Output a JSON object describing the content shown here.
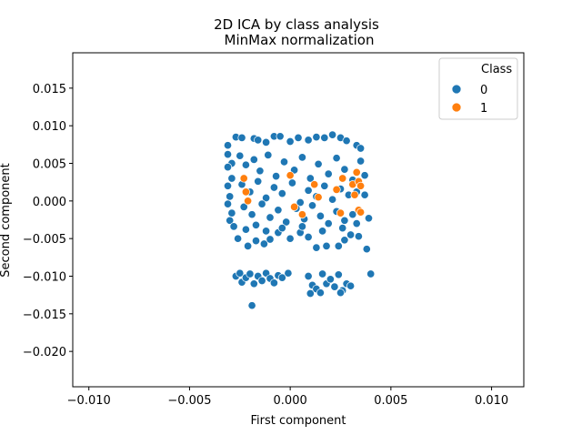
{
  "chart_data": {
    "type": "scatter",
    "title": "2D ICA by class analysis",
    "subtitle": "MinMax normalization",
    "xlabel": "First component",
    "ylabel": "Second component",
    "xlim": [
      -0.0108,
      0.0116
    ],
    "ylim": [
      -0.0247,
      0.0197
    ],
    "xticks": [
      -0.01,
      -0.005,
      0.0,
      0.005,
      0.01
    ],
    "xtick_labels": [
      "−0.010",
      "−0.005",
      "0.000",
      "0.005",
      "0.010"
    ],
    "yticks": [
      0.015,
      0.01,
      0.005,
      0.0,
      -0.005,
      -0.01,
      -0.015,
      -0.02
    ],
    "ytick_labels": [
      "0.015",
      "0.010",
      "0.005",
      "0.000",
      "−0.005",
      "−0.010",
      "−0.015",
      "−0.020"
    ],
    "grid": false,
    "legend": {
      "title": "Class",
      "placement": "top-right",
      "entries": [
        "0",
        "1"
      ]
    },
    "colors": {
      "0": "#1f77b4",
      "1": "#ff7f0e"
    },
    "series": [
      {
        "name": "0",
        "points": [
          [
            -0.0031,
            0.0074
          ],
          [
            -0.0027,
            0.0085
          ],
          [
            -0.0024,
            0.0084
          ],
          [
            -0.0018,
            0.0083
          ],
          [
            -0.0016,
            0.0081
          ],
          [
            -0.0012,
            0.0078
          ],
          [
            -0.0008,
            0.0086
          ],
          [
            -0.0005,
            0.0086
          ],
          [
            0.0,
            0.0079
          ],
          [
            0.0004,
            0.0084
          ],
          [
            0.0009,
            0.0081
          ],
          [
            0.0013,
            0.0085
          ],
          [
            0.0017,
            0.0084
          ],
          [
            0.0021,
            0.0088
          ],
          [
            0.0025,
            0.0084
          ],
          [
            0.0028,
            0.008
          ],
          [
            0.0033,
            0.0074
          ],
          [
            0.0035,
            0.007
          ],
          [
            -0.0031,
            0.0062
          ],
          [
            -0.0029,
            0.005
          ],
          [
            -0.0031,
            0.0045
          ],
          [
            -0.0029,
            0.003
          ],
          [
            -0.0031,
            0.002
          ],
          [
            -0.003,
            0.0006
          ],
          [
            -0.0031,
            -0.0004
          ],
          [
            -0.0029,
            -0.0016
          ],
          [
            -0.003,
            -0.0026
          ],
          [
            -0.0028,
            -0.0034
          ],
          [
            -0.0026,
            -0.005
          ],
          [
            -0.0021,
            -0.006
          ],
          [
            -0.0017,
            -0.0053
          ],
          [
            -0.0013,
            -0.0057
          ],
          [
            -0.001,
            -0.0051
          ],
          [
            -0.0006,
            -0.0042
          ],
          [
            0.0,
            -0.005
          ],
          [
            0.0005,
            -0.0042
          ],
          [
            0.0009,
            -0.0048
          ],
          [
            0.0013,
            -0.0062
          ],
          [
            0.0018,
            -0.006
          ],
          [
            0.0024,
            -0.006
          ],
          [
            0.0027,
            -0.0052
          ],
          [
            0.003,
            -0.0045
          ],
          [
            0.0034,
            -0.0047
          ],
          [
            0.0038,
            -0.0064
          ],
          [
            0.0039,
            -0.0023
          ],
          [
            0.0037,
            0.0008
          ],
          [
            0.0037,
            0.0034
          ],
          [
            0.0035,
            0.0053
          ],
          [
            -0.0025,
            0.006
          ],
          [
            -0.0022,
            0.0048
          ],
          [
            -0.0018,
            0.0055
          ],
          [
            -0.0015,
            0.004
          ],
          [
            -0.0011,
            0.0061
          ],
          [
            -0.0007,
            0.0033
          ],
          [
            -0.0003,
            0.0052
          ],
          [
            0.0002,
            0.0041
          ],
          [
            0.0006,
            0.0058
          ],
          [
            0.001,
            0.003
          ],
          [
            0.0014,
            0.0049
          ],
          [
            0.0019,
            0.0036
          ],
          [
            0.0023,
            0.0057
          ],
          [
            0.0027,
            0.0042
          ],
          [
            0.0031,
            0.0028
          ],
          [
            -0.0024,
            0.0022
          ],
          [
            -0.002,
            0.0012
          ],
          [
            -0.0016,
            0.0026
          ],
          [
            -0.0012,
            0.0004
          ],
          [
            -0.0008,
            0.0018
          ],
          [
            -0.0004,
            0.001
          ],
          [
            0.0001,
            0.0024
          ],
          [
            0.0005,
            -0.0002
          ],
          [
            0.0009,
            0.0014
          ],
          [
            0.0013,
            0.0006
          ],
          [
            0.0017,
            0.002
          ],
          [
            0.0021,
            0.0002
          ],
          [
            0.0025,
            0.0016
          ],
          [
            0.0029,
            0.0008
          ],
          [
            0.0033,
            0.0012
          ],
          [
            -0.0023,
            -0.0008
          ],
          [
            -0.0019,
            -0.0018
          ],
          [
            -0.0014,
            -0.0004
          ],
          [
            -0.001,
            -0.0022
          ],
          [
            -0.0006,
            -0.0012
          ],
          [
            -0.0002,
            -0.0028
          ],
          [
            0.0003,
            -0.001
          ],
          [
            0.0007,
            -0.0024
          ],
          [
            0.0011,
            -0.0006
          ],
          [
            0.0015,
            -0.002
          ],
          [
            0.0019,
            -0.003
          ],
          [
            0.0023,
            -0.0014
          ],
          [
            0.0027,
            -0.0026
          ],
          [
            0.0031,
            -0.0018
          ],
          [
            -0.0022,
            -0.0038
          ],
          [
            -0.0017,
            -0.0032
          ],
          [
            -0.0012,
            -0.004
          ],
          [
            -0.0004,
            -0.0036
          ],
          [
            0.0006,
            -0.0034
          ],
          [
            0.0016,
            -0.004
          ],
          [
            0.0026,
            -0.0036
          ],
          [
            0.0033,
            -0.003
          ],
          [
            -0.0027,
            -0.01
          ],
          [
            -0.0025,
            -0.0096
          ],
          [
            -0.0024,
            -0.0108
          ],
          [
            -0.0022,
            -0.0102
          ],
          [
            -0.002,
            -0.0097
          ],
          [
            -0.0018,
            -0.011
          ],
          [
            -0.0016,
            -0.01
          ],
          [
            -0.0014,
            -0.0106
          ],
          [
            -0.0012,
            -0.0096
          ],
          [
            -0.001,
            -0.0103
          ],
          [
            -0.0008,
            -0.0109
          ],
          [
            -0.0006,
            -0.0099
          ],
          [
            -0.0004,
            -0.0102
          ],
          [
            -0.0001,
            -0.0096
          ],
          [
            -0.0019,
            -0.0139
          ],
          [
            0.0009,
            -0.01
          ],
          [
            0.0011,
            -0.0112
          ],
          [
            0.001,
            -0.0123
          ],
          [
            0.0013,
            -0.0117
          ],
          [
            0.0015,
            -0.0122
          ],
          [
            0.0016,
            -0.0097
          ],
          [
            0.0018,
            -0.011
          ],
          [
            0.002,
            -0.0104
          ],
          [
            0.0022,
            -0.0114
          ],
          [
            0.0024,
            -0.0098
          ],
          [
            0.0026,
            -0.0119
          ],
          [
            0.0028,
            -0.011
          ],
          [
            0.003,
            -0.0113
          ],
          [
            0.0025,
            -0.0122
          ],
          [
            0.004,
            -0.0097
          ]
        ]
      },
      {
        "name": "1",
        "points": [
          [
            -0.0023,
            0.003
          ],
          [
            -0.0022,
            0.0012
          ],
          [
            -0.0021,
            0.0
          ],
          [
            0.0,
            0.0034
          ],
          [
            0.0002,
            -0.0008
          ],
          [
            0.0006,
            -0.0018
          ],
          [
            0.0012,
            0.0022
          ],
          [
            0.0014,
            0.0005
          ],
          [
            0.0023,
            0.0015
          ],
          [
            0.0025,
            -0.0016
          ],
          [
            0.0026,
            0.003
          ],
          [
            0.0031,
            0.0022
          ],
          [
            0.0033,
            0.0038
          ],
          [
            0.0034,
            0.0026
          ],
          [
            0.0035,
            0.002
          ],
          [
            0.0034,
            -0.0012
          ],
          [
            0.0035,
            -0.0015
          ],
          [
            0.0032,
            0.0008
          ]
        ]
      }
    ]
  }
}
